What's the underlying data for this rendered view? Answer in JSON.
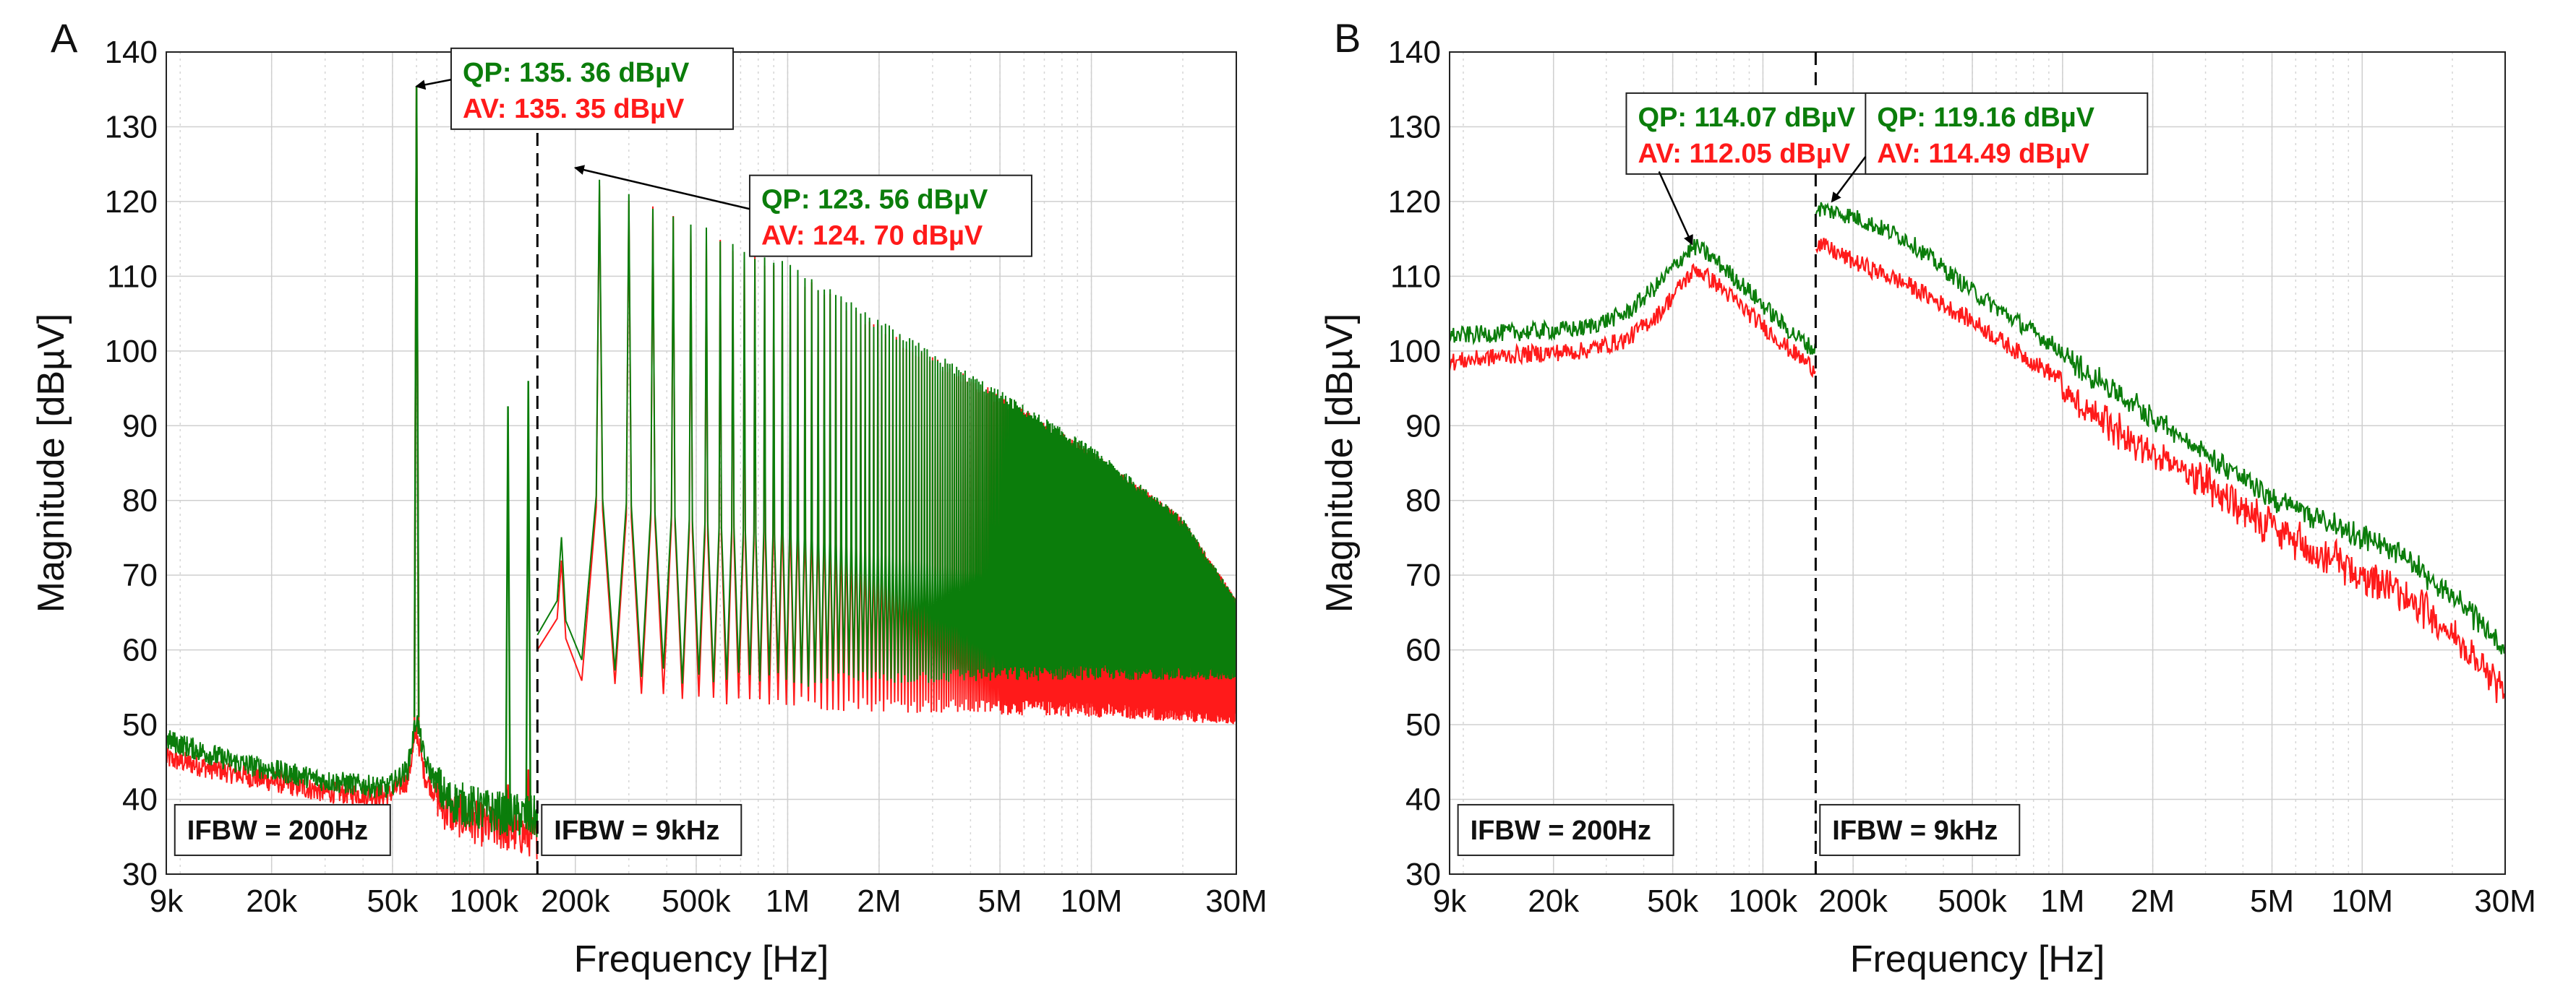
{
  "chart_data": [
    {
      "panel_label": "A",
      "type": "line",
      "xlabel": "Frequency [Hz]",
      "ylabel": "Magnitude [dBµV]",
      "xscale": "log",
      "xlim": [
        9000,
        30000000
      ],
      "ylim": [
        30,
        140
      ],
      "grid": true,
      "x_ticks": [
        {
          "value": 9000,
          "label": "9k"
        },
        {
          "value": 20000,
          "label": "20k"
        },
        {
          "value": 50000,
          "label": "50k"
        },
        {
          "value": 100000,
          "label": "100k"
        },
        {
          "value": 200000,
          "label": "200k"
        },
        {
          "value": 500000,
          "label": "500k"
        },
        {
          "value": 1000000,
          "label": "1M"
        },
        {
          "value": 2000000,
          "label": "2M"
        },
        {
          "value": 5000000,
          "label": "5M"
        },
        {
          "value": 10000000,
          "label": "10M"
        },
        {
          "value": 30000000,
          "label": "30M"
        }
      ],
      "y_ticks": [
        30,
        40,
        50,
        60,
        70,
        80,
        90,
        100,
        110,
        120,
        130,
        140
      ],
      "divider_x": 150000,
      "band_labels": [
        {
          "text": "IFBW = 200Hz",
          "x": 9600,
          "y": 36
        },
        {
          "text": "IFBW = 9kHz",
          "x": 155000,
          "y": 36
        }
      ],
      "annotations": [
        {
          "qp_label": "QP: 135. 36 dBµV",
          "av_label": "AV: 135. 35 dBµV",
          "box_x": 78000,
          "box_y": 140.5,
          "arrow_from": [
            78000,
            136.3
          ],
          "arrow_to": [
            60000,
            135.4
          ]
        },
        {
          "qp_label": "QP: 123. 56 dBµV",
          "av_label": "AV: 124. 70 dBµV",
          "box_x": 750000,
          "box_y": 123.5,
          "arrow_from": [
            750000,
            119
          ],
          "arrow_to": [
            200000,
            124.5
          ]
        }
      ],
      "series": [
        {
          "color": "#0b7d0b",
          "low_band": [
            [
              9000,
              48
            ],
            [
              15000,
              45
            ],
            [
              30000,
              42.5
            ],
            [
              48000,
              41.5
            ],
            [
              56000,
              44
            ],
            [
              60000,
              51
            ],
            [
              64000,
              45
            ],
            [
              75000,
              40
            ],
            [
              100000,
              38.5
            ],
            [
              150000,
              37.5
            ]
          ],
          "spikes": [
            [
              60000,
              135.36
            ],
            [
              120000,
              92.6
            ],
            [
              140000,
              96
            ]
          ],
          "harmonics": {
            "f0": 60000,
            "h_from": 3,
            "h_to": 500,
            "peak": [
              [
                180000,
                75
              ],
              [
                200000,
                123.6
              ],
              [
                300000,
                121
              ],
              [
                500000,
                116.5
              ],
              [
                1000000,
                111
              ],
              [
                2000000,
                103.5
              ],
              [
                5000000,
                94
              ],
              [
                10000000,
                86.5
              ],
              [
                20000000,
                77
              ],
              [
                30000000,
                66
              ]
            ],
            "floor": [
              [
                180000,
                62
              ],
              [
                200000,
                58
              ],
              [
                500000,
                56
              ],
              [
                1000000,
                56
              ],
              [
                3000000,
                56.5
              ],
              [
                10000000,
                57
              ],
              [
                30000000,
                57
              ]
            ]
          }
        },
        {
          "color": "#ff1a1a",
          "low_band": [
            [
              9000,
              45.5
            ],
            [
              15000,
              43.5
            ],
            [
              30000,
              41
            ],
            [
              48000,
              40.5
            ],
            [
              56000,
              42.5
            ],
            [
              60000,
              49
            ],
            [
              64000,
              43
            ],
            [
              75000,
              38.5
            ],
            [
              100000,
              36.5
            ],
            [
              150000,
              35
            ]
          ],
          "spikes": [
            [
              60000,
              135.35
            ],
            [
              120000,
              42
            ],
            [
              140000,
              44
            ]
          ],
          "harmonics": {
            "f0": 60000,
            "h_from": 3,
            "h_to": 500,
            "peak": [
              [
                180000,
                72
              ],
              [
                200000,
                124.7
              ],
              [
                300000,
                120.5
              ],
              [
                500000,
                116
              ],
              [
                1000000,
                110.5
              ],
              [
                2000000,
                103
              ],
              [
                5000000,
                93.5
              ],
              [
                10000000,
                86
              ],
              [
                20000000,
                77
              ],
              [
                30000000,
                66
              ]
            ],
            "floor": [
              [
                180000,
                60
              ],
              [
                200000,
                56
              ],
              [
                500000,
                54
              ],
              [
                1000000,
                53
              ],
              [
                3000000,
                52.5
              ],
              [
                10000000,
                52
              ],
              [
                30000000,
                51
              ]
            ]
          }
        }
      ]
    },
    {
      "panel_label": "B",
      "type": "line",
      "xlabel": "Frequency [Hz]",
      "ylabel": "Magnitude [dBµV]",
      "xscale": "log",
      "xlim": [
        9000,
        30000000
      ],
      "ylim": [
        30,
        140
      ],
      "grid": true,
      "x_ticks": [
        {
          "value": 9000,
          "label": "9k"
        },
        {
          "value": 20000,
          "label": "20k"
        },
        {
          "value": 50000,
          "label": "50k"
        },
        {
          "value": 100000,
          "label": "100k"
        },
        {
          "value": 200000,
          "label": "200k"
        },
        {
          "value": 500000,
          "label": "500k"
        },
        {
          "value": 1000000,
          "label": "1M"
        },
        {
          "value": 2000000,
          "label": "2M"
        },
        {
          "value": 5000000,
          "label": "5M"
        },
        {
          "value": 10000000,
          "label": "10M"
        },
        {
          "value": 30000000,
          "label": "30M"
        }
      ],
      "y_ticks": [
        30,
        40,
        50,
        60,
        70,
        80,
        90,
        100,
        110,
        120,
        130,
        140
      ],
      "divider_x": 150000,
      "band_labels": [
        {
          "text": "IFBW = 200Hz",
          "x": 9600,
          "y": 36
        },
        {
          "text": "IFBW = 9kHz",
          "x": 155000,
          "y": 36
        }
      ],
      "annotations": [
        {
          "qp_label": "QP: 114.07 dBµV",
          "av_label": "AV: 112.05 dBµV",
          "box_x": 35000,
          "box_y": 134.5,
          "arrow_from": [
            45000,
            124
          ],
          "arrow_to": [
            58000,
            114.3
          ]
        },
        {
          "qp_label": "QP: 119.16 dBµV",
          "av_label": "AV: 114.49 dBµV",
          "box_x": 220000,
          "box_y": 134.5,
          "arrow_from": [
            220000,
            126
          ],
          "arrow_to": [
            170000,
            120
          ]
        }
      ],
      "series": [
        {
          "color": "#0b7d0b",
          "points": [
            [
              9000,
              102
            ],
            [
              15000,
              102.5
            ],
            [
              25000,
              103
            ],
            [
              35000,
              105
            ],
            [
              45000,
              109
            ],
            [
              55000,
              113
            ],
            [
              60000,
              114
            ],
            [
              70000,
              112
            ],
            [
              90000,
              108
            ],
            [
              120000,
              103
            ],
            [
              150000,
              100
            ],
            [
              150100,
              119.2
            ],
            [
              200000,
              118
            ],
            [
              300000,
              115
            ],
            [
              500000,
              108
            ],
            [
              700000,
              104
            ],
            [
              1000000,
              100
            ],
            [
              2000000,
              92
            ],
            [
              3000000,
              87
            ],
            [
              5000000,
              81
            ],
            [
              10000000,
              76
            ],
            [
              15000000,
              72
            ],
            [
              20000000,
              68
            ],
            [
              30000000,
              61
            ]
          ]
        },
        {
          "color": "#ff1a1a",
          "points": [
            [
              9000,
              98.5
            ],
            [
              15000,
              99.5
            ],
            [
              25000,
              100
            ],
            [
              35000,
              101.5
            ],
            [
              45000,
              105
            ],
            [
              55000,
              109.5
            ],
            [
              60000,
              111
            ],
            [
              70000,
              109
            ],
            [
              90000,
              105
            ],
            [
              120000,
              100.5
            ],
            [
              150000,
              97.5
            ],
            [
              150100,
              114.5
            ],
            [
              200000,
              112
            ],
            [
              300000,
              109
            ],
            [
              500000,
              104
            ],
            [
              700000,
              100
            ],
            [
              1000000,
              96
            ],
            [
              2000000,
              88
            ],
            [
              3000000,
              84
            ],
            [
              5000000,
              78
            ],
            [
              10000000,
              72
            ],
            [
              15000000,
              68
            ],
            [
              20000000,
              64
            ],
            [
              30000000,
              56
            ]
          ]
        }
      ]
    }
  ]
}
